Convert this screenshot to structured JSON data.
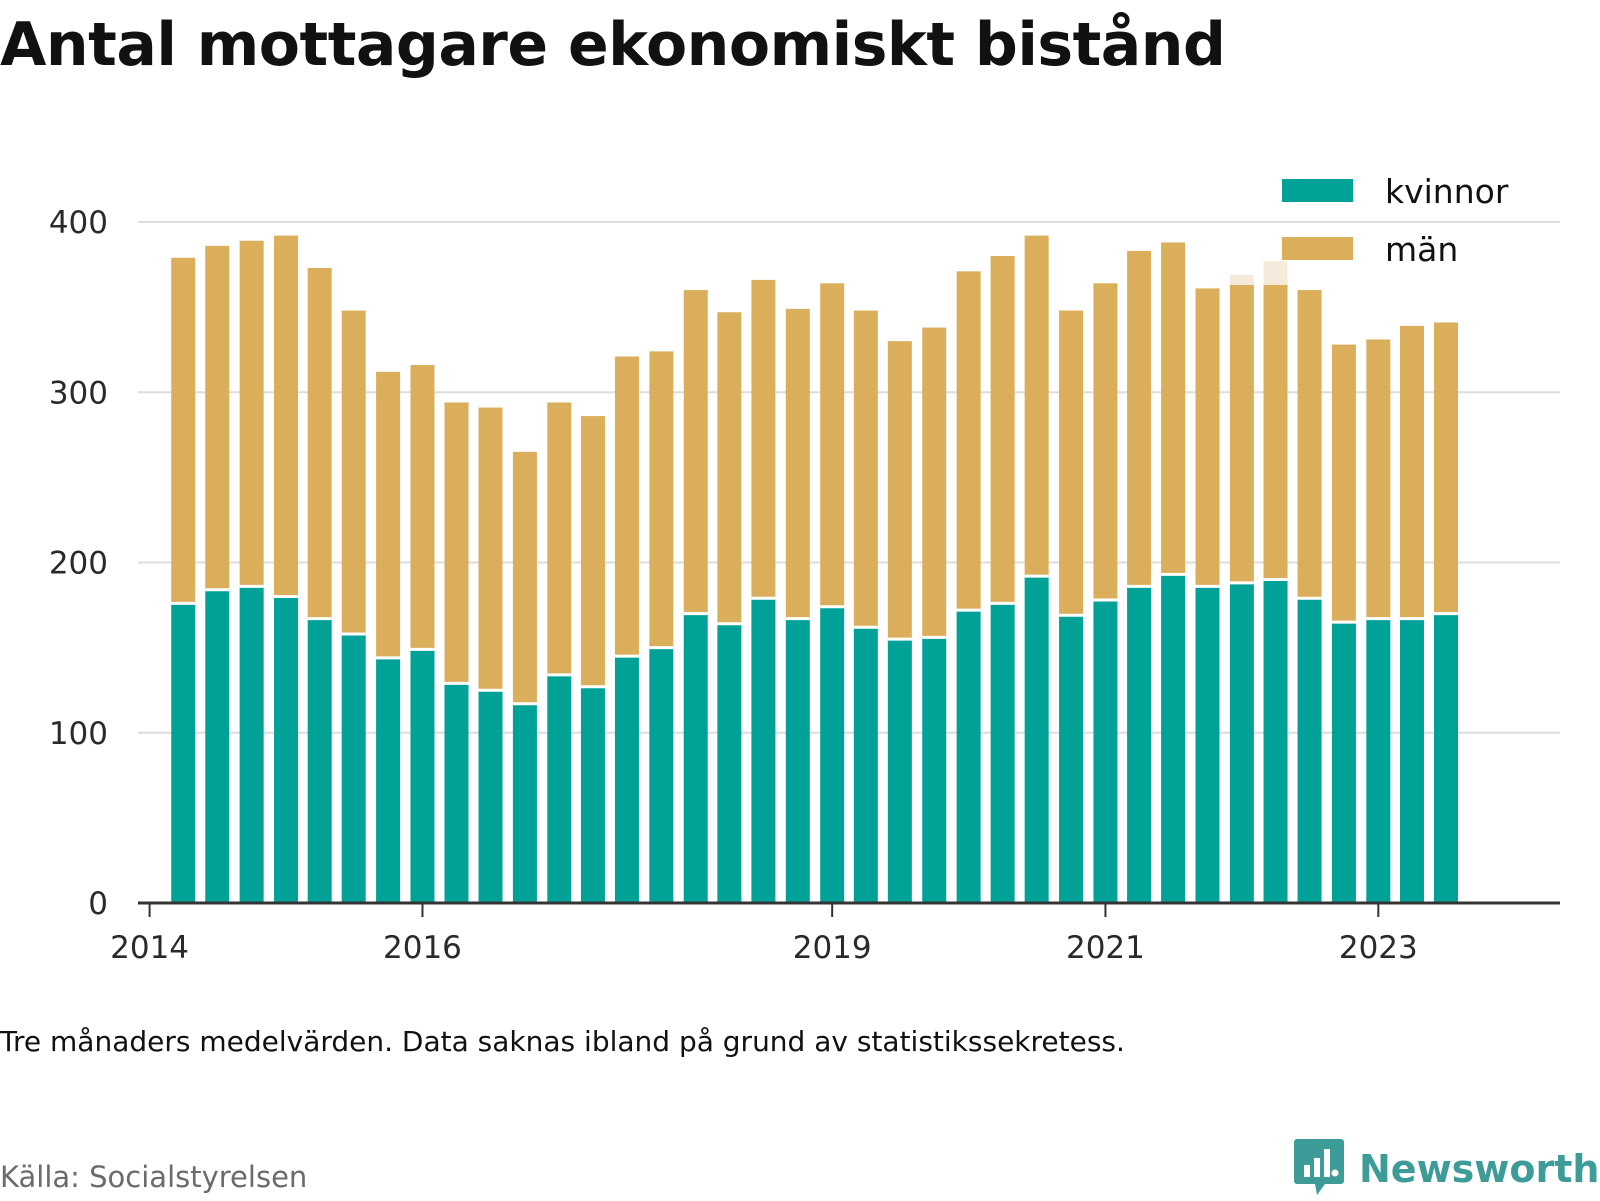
{
  "title": "Antal mottagare ekonomiskt bistånd",
  "note": "Tre månaders medelvärden. Data saknas ibland på grund av statistikssekretess.",
  "source": "Källa: Socialstyrelsen",
  "brand": {
    "name": "Newsworthy",
    "icon": "newsworthy-logo-icon",
    "color": "#3d9b98"
  },
  "colors": {
    "kvinnor": "#00a298",
    "man": "#dbae5b",
    "grid": "#dddddd",
    "axis": "#333333",
    "ghost": "#f6eadb"
  },
  "chart_data": {
    "type": "bar",
    "stacked": true,
    "title": "Antal mottagare ekonomiskt bistånd",
    "xlabel": "",
    "ylabel": "",
    "ylim": [
      0,
      400
    ],
    "yticks": [
      0,
      100,
      200,
      300,
      400
    ],
    "xlim": [
      "2014-01",
      "2024-05"
    ],
    "xticks": [
      "2014",
      "2016",
      "2019",
      "2021",
      "2023"
    ],
    "grid": true,
    "legend": "top-right",
    "x": [
      "2014-04",
      "2014-07",
      "2014-10",
      "2015-01",
      "2015-04",
      "2015-07",
      "2015-10",
      "2016-01",
      "2016-04",
      "2016-07",
      "2016-10",
      "2017-01",
      "2017-04",
      "2017-07",
      "2017-10",
      "2018-01",
      "2018-04",
      "2018-07",
      "2018-10",
      "2019-01",
      "2019-04",
      "2019-07",
      "2019-10",
      "2020-01",
      "2020-04",
      "2020-07",
      "2020-10",
      "2021-01",
      "2021-04",
      "2021-07",
      "2021-10",
      "2022-01",
      "2022-04",
      "2022-07",
      "2022-10",
      "2023-01",
      "2023-04",
      "2023-07"
    ],
    "series": [
      {
        "name": "kvinnor",
        "values": [
          176,
          184,
          186,
          180,
          167,
          158,
          144,
          149,
          129,
          125,
          117,
          134,
          127,
          145,
          150,
          170,
          164,
          179,
          167,
          174,
          162,
          155,
          156,
          172,
          176,
          192,
          169,
          178,
          186,
          193,
          186,
          188,
          190,
          179,
          165,
          167,
          167,
          170
        ]
      },
      {
        "name": "män",
        "values": [
          203,
          202,
          203,
          212,
          206,
          190,
          168,
          167,
          165,
          166,
          148,
          160,
          159,
          176,
          174,
          190,
          183,
          187,
          182,
          190,
          186,
          175,
          182,
          199,
          204,
          200,
          179,
          186,
          197,
          195,
          175,
          175,
          173,
          181,
          163,
          164,
          172,
          171
        ]
      }
    ],
    "partial_overlay": [
      {
        "x": "2022-01",
        "total": 369
      },
      {
        "x": "2022-04",
        "total": 377
      }
    ]
  }
}
